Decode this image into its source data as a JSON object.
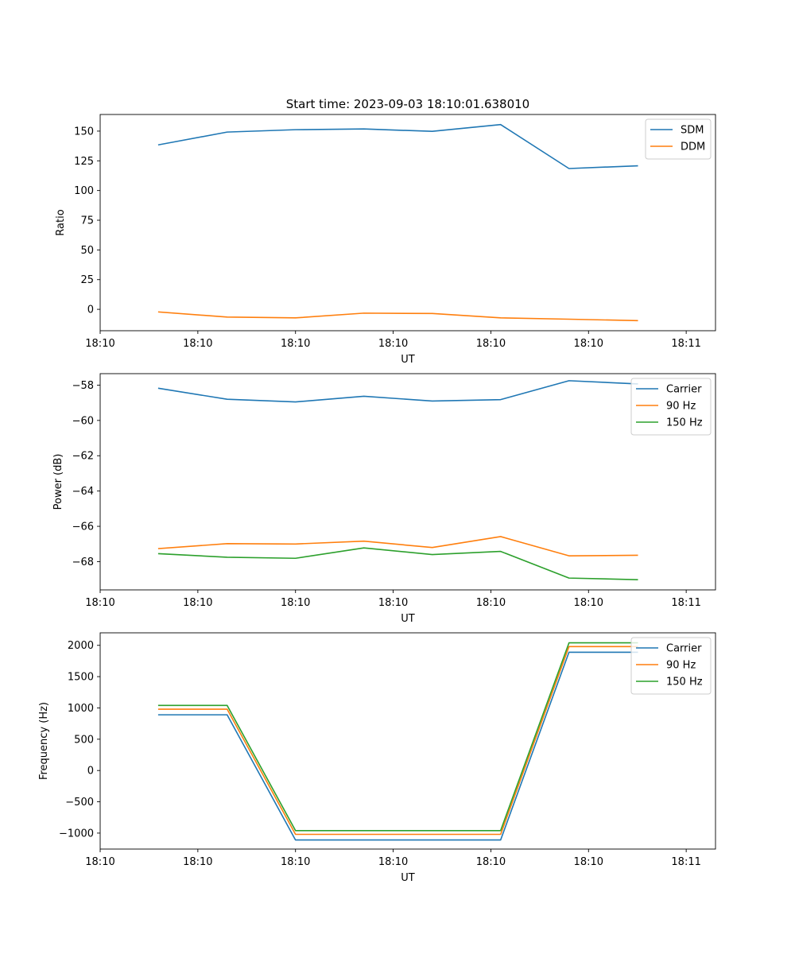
{
  "figure": {
    "title": "Start time: 2023-09-03 18:10:01.638010"
  },
  "chart_data": [
    {
      "type": "line",
      "title": "Start time: 2023-09-03 18:10:01.638010",
      "xlabel": "UT",
      "ylabel": "Ratio",
      "x": [
        0.6,
        1.3,
        2.0,
        2.7,
        3.4,
        4.1,
        4.8,
        5.5
      ],
      "xlim": [
        0,
        6.3
      ],
      "xticks": [
        0,
        1,
        2,
        3,
        4,
        5,
        6
      ],
      "xtick_labels": [
        "18:10",
        "18:10",
        "18:10",
        "18:10",
        "18:10",
        "18:10",
        "18:11"
      ],
      "ylim": [
        -18,
        164
      ],
      "yticks": [
        0,
        25,
        50,
        75,
        100,
        125,
        150
      ],
      "ytick_labels": [
        "0",
        "25",
        "50",
        "75",
        "100",
        "125",
        "150"
      ],
      "grid": false,
      "legend_position": "top-right",
      "series": [
        {
          "name": "SDM",
          "color": "#1f77b4",
          "values": [
            138.5,
            149.2,
            151.2,
            151.8,
            149.8,
            155.5,
            118.5,
            120.8
          ]
        },
        {
          "name": "DDM",
          "color": "#ff7f0e",
          "values": [
            -2.2,
            -6.5,
            -7.2,
            -3.2,
            -3.5,
            -7.2,
            -8.3,
            -9.5
          ]
        }
      ]
    },
    {
      "type": "line",
      "title": "",
      "xlabel": "UT",
      "ylabel": "Power (dB)",
      "x": [
        0.6,
        1.3,
        2.0,
        2.7,
        3.4,
        4.1,
        4.8,
        5.5
      ],
      "xlim": [
        0,
        6.3
      ],
      "xticks": [
        0,
        1,
        2,
        3,
        4,
        5,
        6
      ],
      "xtick_labels": [
        "18:10",
        "18:10",
        "18:10",
        "18:10",
        "18:10",
        "18:10",
        "18:11"
      ],
      "ylim": [
        -69.6,
        -57.35
      ],
      "yticks": [
        -68,
        -66,
        -64,
        -62,
        -60,
        -58
      ],
      "ytick_labels": [
        "−68",
        "−66",
        "−64",
        "−62",
        "−60",
        "−58"
      ],
      "grid": false,
      "legend_position": "top-right",
      "series": [
        {
          "name": "Carrier",
          "color": "#1f77b4",
          "values": [
            -58.18,
            -58.8,
            -58.95,
            -58.63,
            -58.9,
            -58.82,
            -57.75,
            -57.93
          ]
        },
        {
          "name": "90 Hz",
          "color": "#ff7f0e",
          "values": [
            -67.26,
            -66.98,
            -67.0,
            -66.84,
            -67.2,
            -66.58,
            -67.67,
            -67.64
          ]
        },
        {
          "name": "150 Hz",
          "color": "#2ca02c",
          "values": [
            -67.55,
            -67.75,
            -67.81,
            -67.22,
            -67.6,
            -67.42,
            -68.93,
            -69.02
          ]
        }
      ]
    },
    {
      "type": "line",
      "title": "",
      "xlabel": "UT",
      "ylabel": "Frequency (Hz)",
      "x": [
        0.6,
        1.3,
        2.0,
        2.7,
        3.4,
        4.1,
        4.8,
        5.5
      ],
      "xlim": [
        0,
        6.3
      ],
      "xticks": [
        0,
        1,
        2,
        3,
        4,
        5,
        6
      ],
      "xtick_labels": [
        "18:10",
        "18:10",
        "18:10",
        "18:10",
        "18:10",
        "18:10",
        "18:11"
      ],
      "ylim": [
        -1255,
        2200
      ],
      "yticks": [
        -1000,
        -500,
        0,
        500,
        1000,
        1500,
        2000
      ],
      "ytick_labels": [
        "−1000",
        "−500",
        "0",
        "500",
        "1000",
        "1500",
        "2000"
      ],
      "grid": false,
      "legend_position": "top-right",
      "series": [
        {
          "name": "Carrier",
          "color": "#1f77b4",
          "values": [
            890,
            890,
            -1110,
            -1110,
            -1110,
            -1110,
            1890,
            1890
          ]
        },
        {
          "name": "90 Hz",
          "color": "#ff7f0e",
          "values": [
            980,
            980,
            -1020,
            -1020,
            -1020,
            -1020,
            1980,
            1980
          ]
        },
        {
          "name": "150 Hz",
          "color": "#2ca02c",
          "values": [
            1040,
            1040,
            -960,
            -960,
            -960,
            -960,
            2040,
            2040
          ]
        }
      ]
    }
  ]
}
